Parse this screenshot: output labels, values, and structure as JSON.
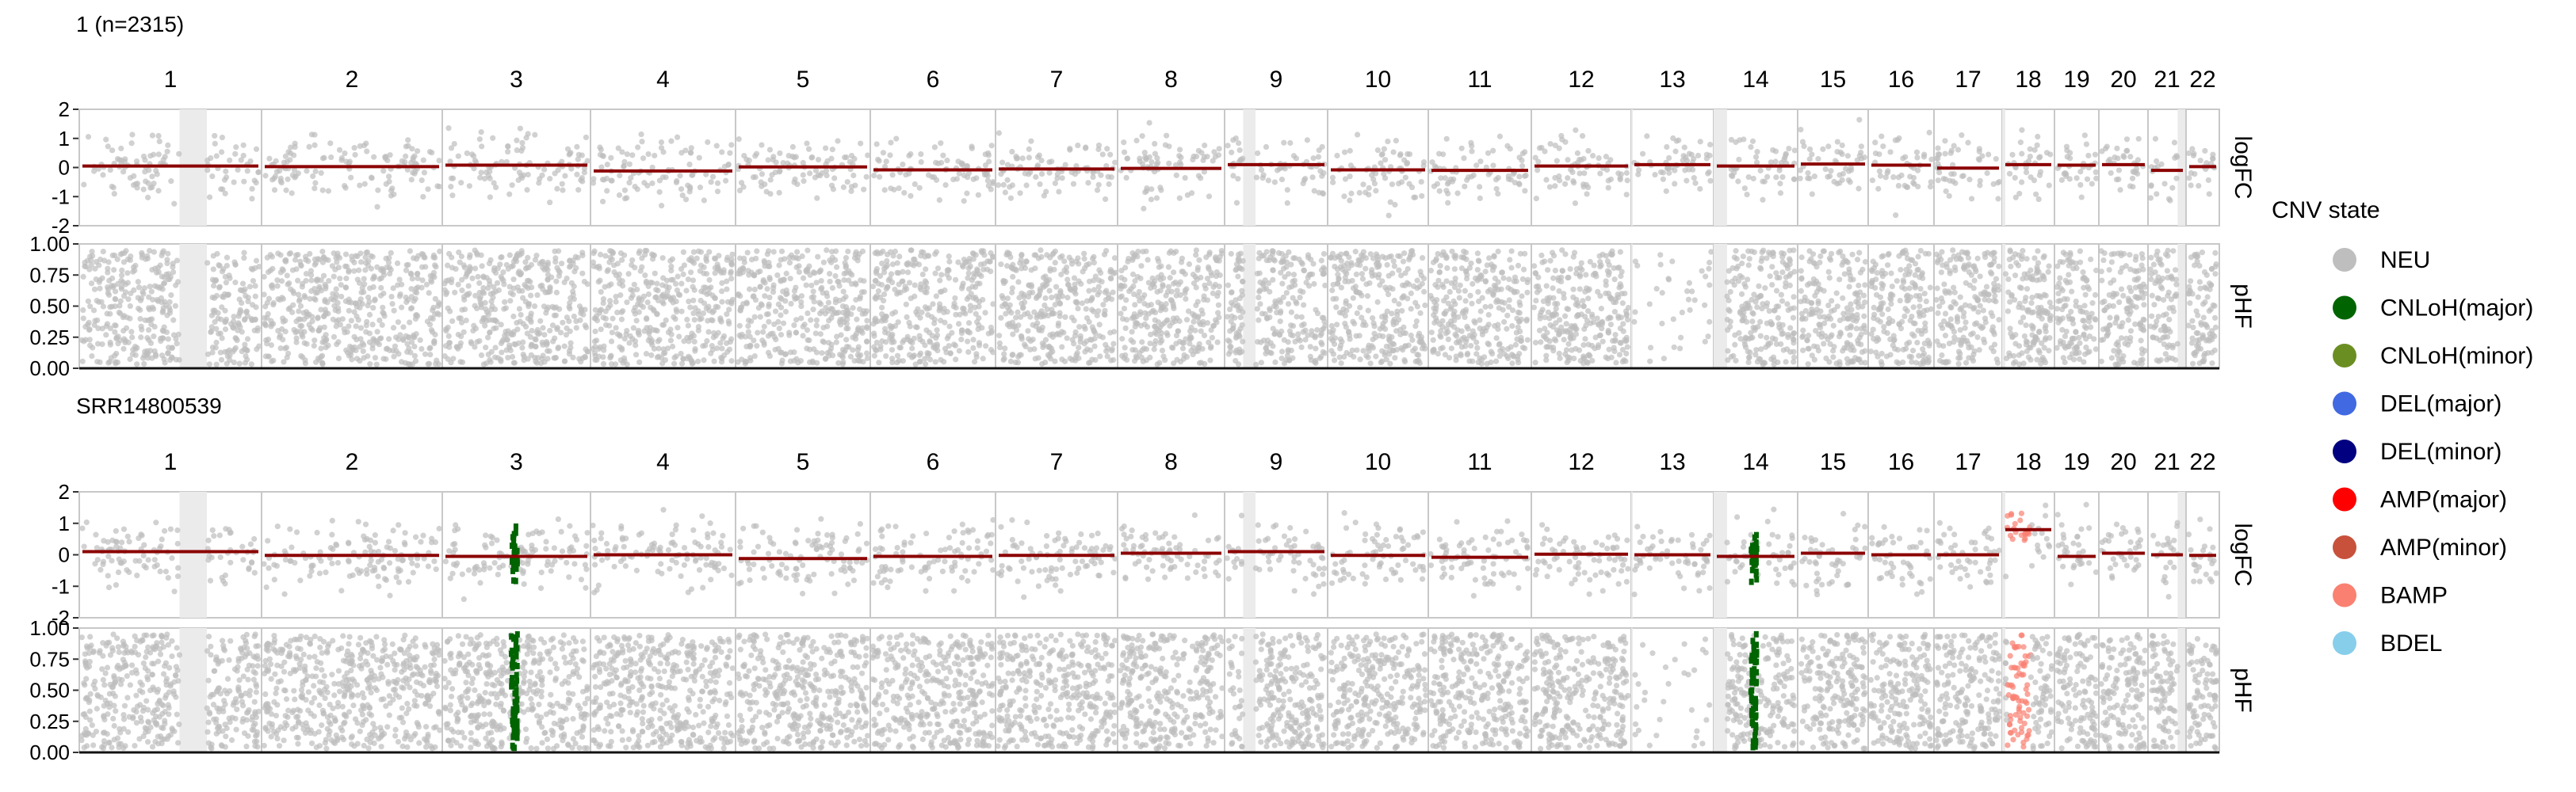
{
  "chart_data": {
    "type": "scatter",
    "chromosomes": [
      "1",
      "2",
      "3",
      "4",
      "5",
      "6",
      "7",
      "8",
      "9",
      "10",
      "11",
      "12",
      "13",
      "14",
      "15",
      "16",
      "17",
      "18",
      "19",
      "20",
      "21",
      "22"
    ],
    "panel_labels": [
      "logFC",
      "pHF"
    ],
    "axes": {
      "logFC": {
        "ylim": [
          -2,
          2
        ],
        "ticks": [
          "2",
          "1",
          "0",
          "-1",
          "-2"
        ]
      },
      "pHF": {
        "ylim": [
          0,
          1
        ],
        "ticks": [
          "1.00",
          "0.75",
          "0.50",
          "0.25",
          "0.00"
        ]
      }
    },
    "samples": [
      {
        "title": "1 (n=2315)",
        "logFC_segments": [
          0.05,
          0.03,
          0.08,
          -0.12,
          0.02,
          -0.08,
          -0.05,
          -0.03,
          0.1,
          -0.08,
          -0.1,
          0.05,
          0.1,
          0.05,
          0.12,
          0.08,
          -0.02,
          0.1,
          0.08,
          0.1,
          -0.1,
          0.03
        ],
        "cnv_regions": []
      },
      {
        "title": "SRR14800539",
        "logFC_segments": [
          0.1,
          -0.02,
          -0.05,
          0.0,
          -0.12,
          -0.05,
          -0.02,
          0.05,
          0.1,
          -0.02,
          -0.08,
          0.02,
          0.0,
          -0.05,
          0.05,
          0.0,
          0.0,
          0.8,
          -0.05,
          0.05,
          0.0,
          -0.02
        ],
        "cnv_regions": [
          {
            "chromosome": "3",
            "state": "CNLoH(major)"
          },
          {
            "chromosome": "14",
            "state": "CNLoH(major)"
          },
          {
            "chromosome": "18",
            "state": "BAMP"
          }
        ]
      }
    ],
    "legend": {
      "title": "CNV state",
      "position": "right",
      "entries": [
        {
          "label": "NEU",
          "color": "#bebebe"
        },
        {
          "label": "CNLoH(major)",
          "color": "#006400"
        },
        {
          "label": "CNLoH(minor)",
          "color": "#6b8e23"
        },
        {
          "label": "DEL(major)",
          "color": "#4169e1"
        },
        {
          "label": "DEL(minor)",
          "color": "#000080"
        },
        {
          "label": "AMP(major)",
          "color": "#ff0000"
        },
        {
          "label": "AMP(minor)",
          "color": "#c8513c"
        },
        {
          "label": "BAMP",
          "color": "#fa8072"
        },
        {
          "label": "BDEL",
          "color": "#87ceeb"
        }
      ]
    },
    "segment_color": "#8b0000"
  }
}
